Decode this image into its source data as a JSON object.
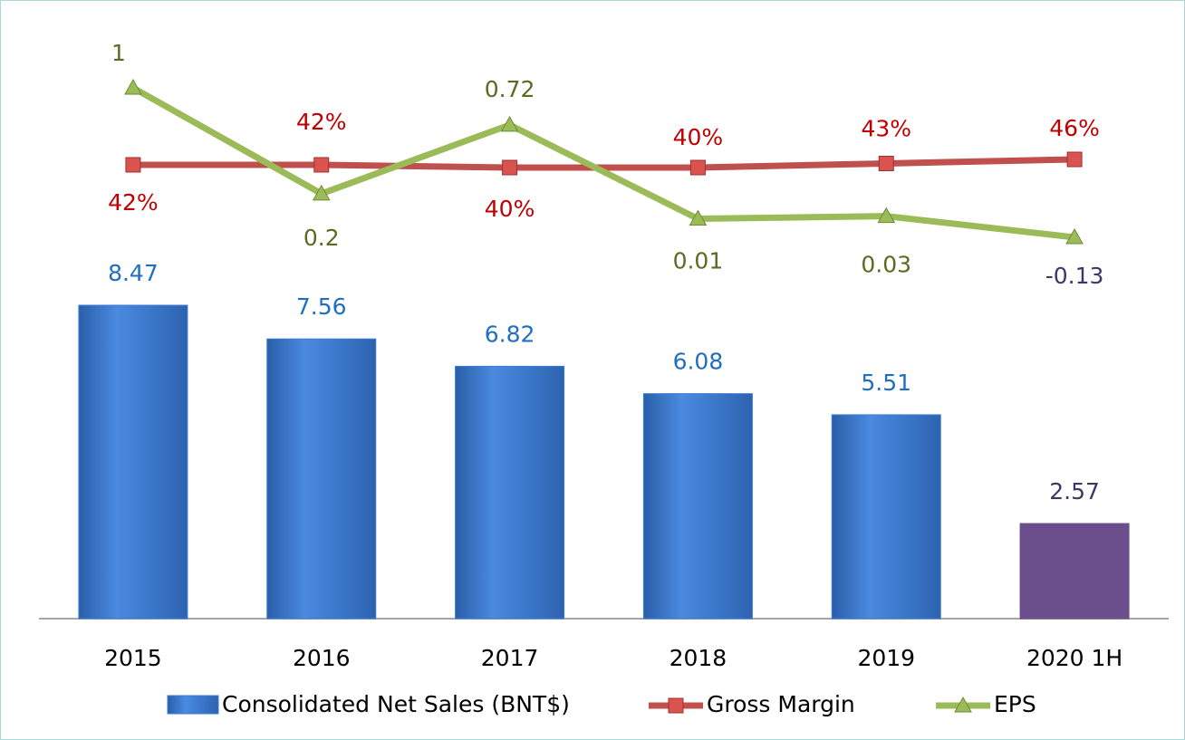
{
  "chart_data": {
    "type": "bar-line",
    "categories": [
      "2015",
      "2016",
      "2017",
      "2018",
      "2019",
      "2020 1H"
    ],
    "series": [
      {
        "name": "Consolidated Net Sales (BNT$)",
        "type": "bar",
        "color": "#3a7bd5",
        "colors": [
          "#3a7bd5",
          "#3a7bd5",
          "#3a7bd5",
          "#3a7bd5",
          "#3a7bd5",
          "#6b4f8c"
        ],
        "values": [
          8.47,
          7.56,
          6.82,
          6.08,
          5.51,
          2.57
        ]
      },
      {
        "name": "Gross Margin",
        "type": "line",
        "color": "#c0504d",
        "marker": "square",
        "values": [
          42,
          42,
          40,
          40,
          43,
          46
        ],
        "value_labels": [
          "42%",
          "42%",
          "40%",
          "40%",
          "43%",
          "46%"
        ]
      },
      {
        "name": "EPS",
        "type": "line",
        "color": "#9bbb59",
        "marker": "triangle",
        "values": [
          1,
          0.2,
          0.72,
          0.01,
          0.03,
          -0.13
        ]
      }
    ]
  }
}
